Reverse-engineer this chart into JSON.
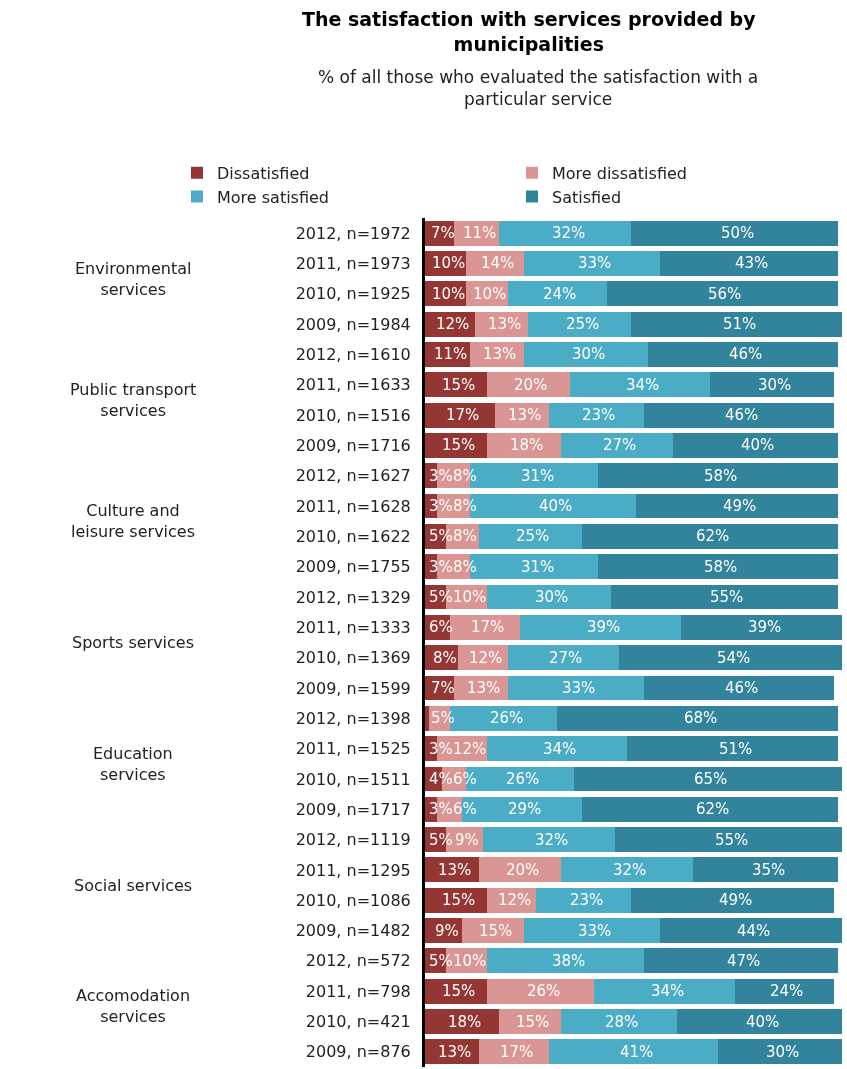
{
  "chart_data": {
    "type": "bar",
    "orientation": "horizontal",
    "stacked": true,
    "title": "The satisfaction with services provided by municipalities",
    "subtitle": "% of all those who evaluated the satisfaction with a particular service",
    "categories": [
      "2012, n=1972",
      "2011, n=1973",
      "2010, n=1925",
      "2009, n=1984",
      "2012, n=1610",
      "2011, n=1633",
      "2010, n=1516",
      "2009, n=1716",
      "2012, n=1627",
      "2011, n=1628",
      "2010, n=1622",
      "2009, n=1755",
      "2012, n=1329",
      "2011, n=1333",
      "2010, n=1369",
      "2009, n=1599",
      "2012, n=1398",
      "2011, n=1525",
      "2010, n=1511",
      "2009, n=1717",
      "2012, n=1119",
      "2011, n=1295",
      "2010, n=1086",
      "2009, n=1482",
      "2012, n=572",
      "2011, n=798",
      "2010, n=421",
      "2009, n=876"
    ],
    "annotations": [
      "Environmental services",
      "Public transport services",
      "Culture and leisure services",
      "Sports services",
      "Education services",
      "Social services",
      "Accomodation services"
    ],
    "legend": "top",
    "series": [
      {
        "name": "Dissatisfied",
        "color": "#943634",
        "values": [
          7,
          10,
          10,
          12,
          11,
          15,
          17,
          15,
          3,
          3,
          5,
          3,
          5,
          6,
          8,
          7,
          1,
          3,
          4,
          3,
          5,
          13,
          15,
          9,
          5,
          15,
          18,
          13
        ],
        "value_labels": [
          "7%",
          "10%",
          "10%",
          "12%",
          "11%",
          "15%",
          "17%",
          "15%",
          "3%",
          "3%",
          "5%",
          "3%",
          "5%",
          "6%",
          "8%",
          "7%",
          null,
          "3%",
          "4%",
          "3%",
          "5%",
          "13%",
          "15%",
          "9%",
          "5%",
          "15%",
          "18%",
          "13%"
        ]
      },
      {
        "name": "More dissatisfied",
        "color": "#d99694",
        "values": [
          11,
          14,
          10,
          13,
          13,
          20,
          13,
          18,
          8,
          8,
          8,
          8,
          10,
          17,
          12,
          13,
          5,
          12,
          6,
          6,
          9,
          20,
          12,
          15,
          10,
          26,
          15,
          17
        ],
        "value_labels": [
          "11%",
          "14%",
          "10%",
          "13%",
          "13%",
          "20%",
          "13%",
          "18%",
          "8%",
          "8%",
          "8%",
          "8%",
          "10%",
          "17%",
          "12%",
          "13%",
          "5%",
          "12%",
          "6%",
          "6%",
          "9%",
          "20%",
          "12%",
          "15%",
          "10%",
          "26%",
          "15%",
          "17%"
        ]
      },
      {
        "name": "More satisfied",
        "color": "#4bacc6",
        "values": [
          32,
          33,
          24,
          25,
          30,
          34,
          23,
          27,
          31,
          40,
          25,
          31,
          30,
          39,
          27,
          33,
          26,
          34,
          26,
          29,
          32,
          32,
          23,
          33,
          38,
          34,
          28,
          41
        ],
        "value_labels": [
          "32%",
          "33%",
          "24%",
          "25%",
          "30%",
          "34%",
          "23%",
          "27%",
          "31%",
          "40%",
          "25%",
          "31%",
          "30%",
          "39%",
          "27%",
          "33%",
          "26%",
          "34%",
          "26%",
          "29%",
          "32%",
          "32%",
          "23%",
          "33%",
          "38%",
          "34%",
          "28%",
          "41%"
        ]
      },
      {
        "name": "Satisfied",
        "color": "#31849b",
        "values": [
          50,
          43,
          56,
          51,
          46,
          30,
          46,
          40,
          58,
          49,
          62,
          58,
          55,
          39,
          54,
          46,
          68,
          51,
          65,
          62,
          55,
          35,
          49,
          44,
          47,
          24,
          40,
          30
        ],
        "value_labels": [
          "50%",
          "43%",
          "56%",
          "51%",
          "46%",
          "30%",
          "46%",
          "40%",
          "58%",
          "49%",
          "62%",
          "58%",
          "55%",
          "39%",
          "54%",
          "46%",
          "68%",
          "51%",
          "65%",
          "62%",
          "55%",
          "35%",
          "49%",
          "44%",
          "47%",
          "24%",
          "40%",
          "30%"
        ]
      }
    ]
  }
}
